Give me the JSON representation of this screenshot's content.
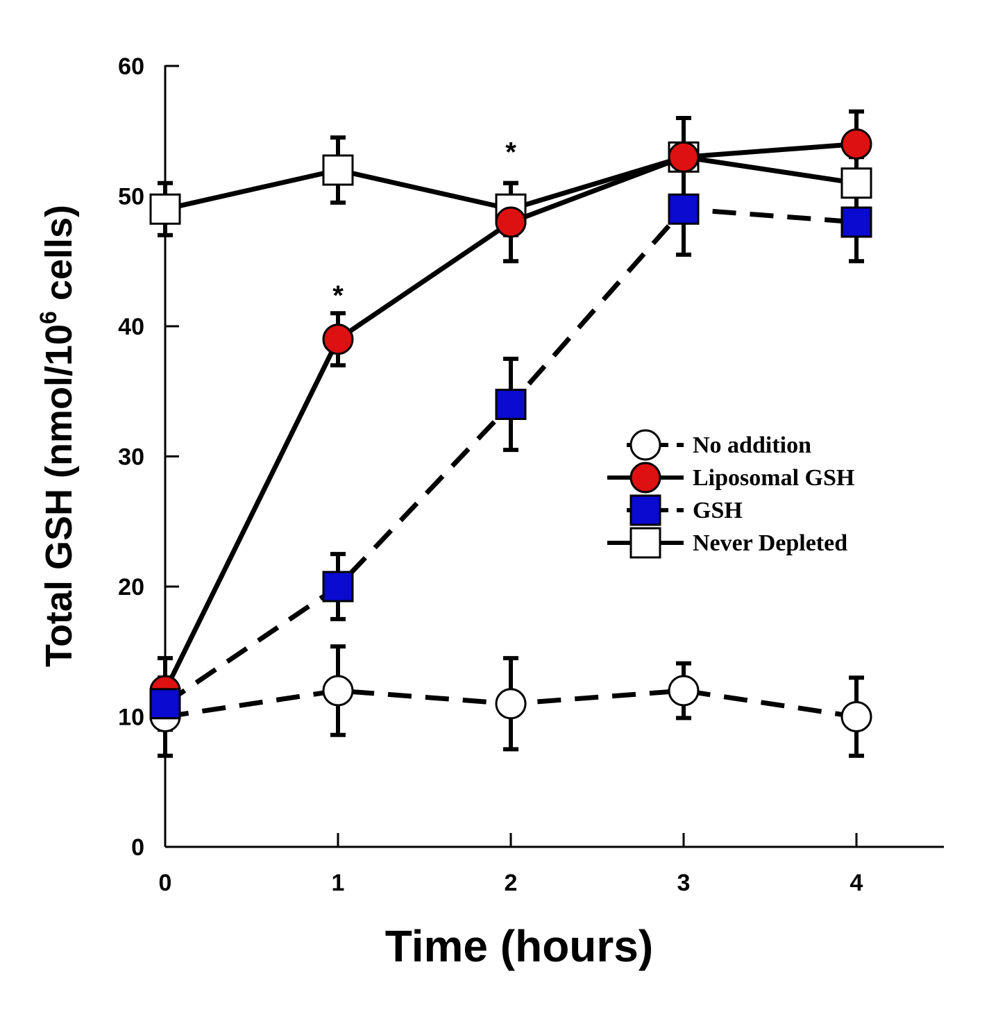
{
  "chart_data": {
    "type": "line",
    "xlabel": "Time (hours)",
    "ylabel_main": "Total GSH (nmol/10",
    "ylabel_sup": "6",
    "ylabel_tail": " cells)",
    "xlim": [
      0,
      4.5
    ],
    "ylim": [
      0,
      60
    ],
    "x_ticks": [
      0,
      1,
      2,
      3,
      4
    ],
    "y_ticks": [
      0,
      10,
      20,
      30,
      40,
      50,
      60
    ],
    "x_tick_labels": [
      "0",
      "1",
      "2",
      "3",
      "4"
    ],
    "y_tick_labels": [
      "0",
      "10",
      "20",
      "30",
      "40",
      "50",
      "60"
    ],
    "grid": false,
    "legend_position": "center-right",
    "series": [
      {
        "name": "No addition",
        "x": [
          0,
          1,
          2,
          3,
          4
        ],
        "y": [
          10,
          12,
          11,
          12,
          10
        ],
        "err": [
          3,
          3.4,
          3.5,
          2.1,
          3
        ],
        "marker": "circle",
        "fill": "#ffffff",
        "line": "dashed"
      },
      {
        "name": "Liposomal GSH",
        "x": [
          0,
          1,
          2,
          3,
          4
        ],
        "y": [
          12,
          39,
          48,
          53,
          54
        ],
        "err": [
          2.5,
          2,
          3,
          3,
          2.5
        ],
        "marker": "circle",
        "fill": "#dd1111",
        "line": "solid"
      },
      {
        "name": "GSH",
        "x": [
          0,
          1,
          2,
          3,
          4
        ],
        "y": [
          11,
          20,
          34,
          49,
          48
        ],
        "err": [
          2,
          2.5,
          3.5,
          3.5,
          3
        ],
        "marker": "square",
        "fill": "#0a0ad0",
        "line": "dashed"
      },
      {
        "name": "Never Depleted",
        "x": [
          0,
          1,
          2,
          3,
          4
        ],
        "y": [
          49,
          52,
          49,
          53,
          51
        ],
        "err": [
          2,
          2.5,
          2,
          3,
          2
        ],
        "marker": "square",
        "fill": "#ffffff",
        "line": "solid"
      }
    ],
    "annotations": [
      {
        "text": "*",
        "x": 1,
        "y": 43
      },
      {
        "text": "*",
        "x": 2,
        "y": 54
      }
    ]
  }
}
